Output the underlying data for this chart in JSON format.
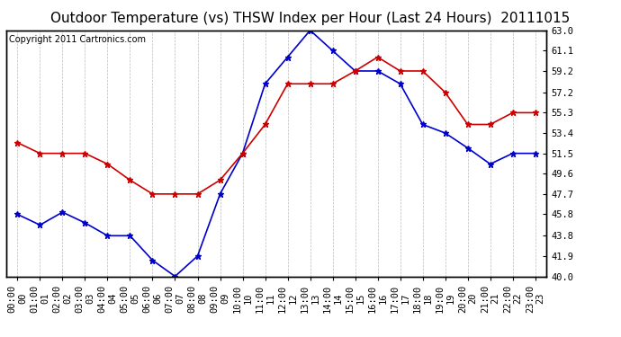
{
  "title": "Outdoor Temperature (vs) THSW Index per Hour (Last 24 Hours)  20111015",
  "copyright": "Copyright 2011 Cartronics.com",
  "hours": [
    0,
    1,
    2,
    3,
    4,
    5,
    6,
    7,
    8,
    9,
    10,
    11,
    12,
    13,
    14,
    15,
    16,
    17,
    18,
    19,
    20,
    21,
    22,
    23
  ],
  "blue_data": [
    45.8,
    44.8,
    46.0,
    45.0,
    43.8,
    43.8,
    41.5,
    40.0,
    41.9,
    47.7,
    51.5,
    58.0,
    60.5,
    63.0,
    61.1,
    59.2,
    59.2,
    58.0,
    54.2,
    53.4,
    52.0,
    50.5,
    51.5,
    51.5
  ],
  "red_data": [
    52.5,
    51.5,
    51.5,
    51.5,
    50.5,
    49.0,
    47.7,
    47.7,
    47.7,
    49.0,
    51.5,
    54.2,
    58.0,
    58.0,
    58.0,
    59.2,
    60.5,
    59.2,
    59.2,
    57.2,
    54.2,
    54.2,
    55.3,
    55.3
  ],
  "ylim": [
    40.0,
    63.0
  ],
  "yticks": [
    40.0,
    41.9,
    43.8,
    45.8,
    47.7,
    49.6,
    51.5,
    53.4,
    55.3,
    57.2,
    59.2,
    61.1,
    63.0
  ],
  "blue_color": "#0000cc",
  "red_color": "#cc0000",
  "bg_color": "#ffffff",
  "grid_color": "#bbbbbb",
  "title_fontsize": 11,
  "copyright_fontsize": 7,
  "tick_fontsize": 7.5,
  "marker_size": 4.5,
  "line_width": 1.2
}
